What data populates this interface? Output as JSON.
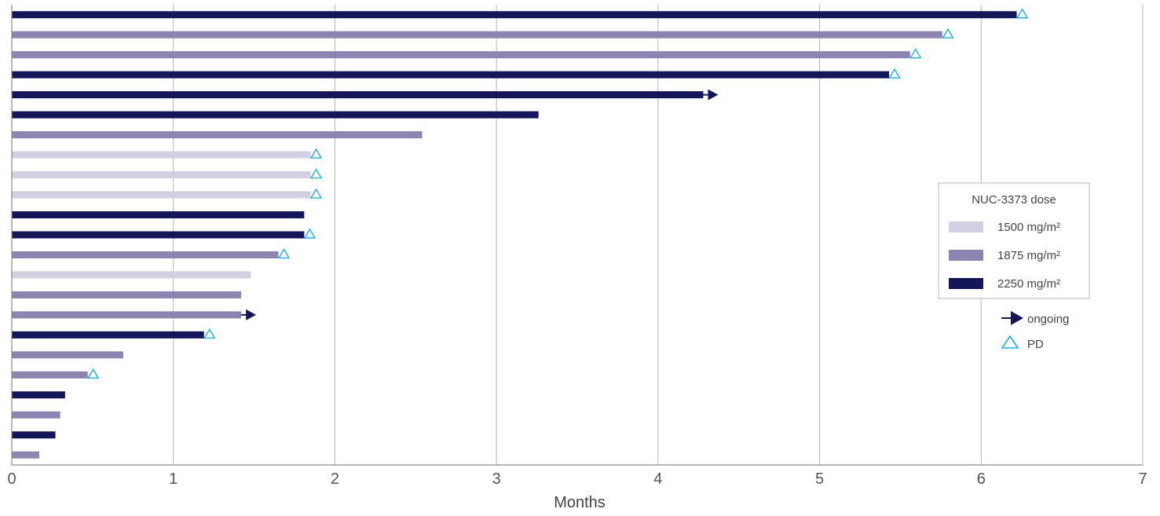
{
  "chart_data": {
    "type": "bar",
    "orientation": "horizontal",
    "xlabel": "Months",
    "xlim": [
      0,
      7
    ],
    "x_ticks": [
      "0",
      "1",
      "2",
      "3",
      "4",
      "5",
      "6",
      "7"
    ],
    "grid": true,
    "legend_placement": "right",
    "legend": {
      "title": "NUC-3373 dose",
      "series": [
        {
          "name": "1500 mg/m²",
          "color": "#d3cfe3"
        },
        {
          "name": "1875 mg/m²",
          "color": "#8c85b2"
        },
        {
          "name": "2250 mg/m²",
          "color": "#141659"
        }
      ],
      "markers": [
        {
          "name": "ongoing",
          "icon": "arrow-right-icon",
          "color": "#141659"
        },
        {
          "name": "PD",
          "icon": "triangle-icon",
          "color": "#1ab0e0"
        }
      ]
    },
    "bars": [
      {
        "dose": "2250 mg/m²",
        "months": 6.22,
        "marker": "PD"
      },
      {
        "dose": "1875 mg/m²",
        "months": 5.76,
        "marker": "PD"
      },
      {
        "dose": "1875 mg/m²",
        "months": 5.56,
        "marker": "PD"
      },
      {
        "dose": "2250 mg/m²",
        "months": 5.43,
        "marker": "PD"
      },
      {
        "dose": "2250 mg/m²",
        "months": 4.28,
        "marker": "ongoing"
      },
      {
        "dose": "2250 mg/m²",
        "months": 3.26,
        "marker": ""
      },
      {
        "dose": "1875 mg/m²",
        "months": 2.54,
        "marker": ""
      },
      {
        "dose": "1500 mg/m²",
        "months": 1.85,
        "marker": "PD"
      },
      {
        "dose": "1500 mg/m²",
        "months": 1.85,
        "marker": "PD"
      },
      {
        "dose": "1500 mg/m²",
        "months": 1.85,
        "marker": "PD"
      },
      {
        "dose": "2250 mg/m²",
        "months": 1.81,
        "marker": ""
      },
      {
        "dose": "2250 mg/m²",
        "months": 1.81,
        "marker": "PD"
      },
      {
        "dose": "1875 mg/m²",
        "months": 1.65,
        "marker": "PD"
      },
      {
        "dose": "1500 mg/m²",
        "months": 1.48,
        "marker": ""
      },
      {
        "dose": "1875 mg/m²",
        "months": 1.42,
        "marker": ""
      },
      {
        "dose": "1875 mg/m²",
        "months": 1.42,
        "marker": "ongoing"
      },
      {
        "dose": "2250 mg/m²",
        "months": 1.19,
        "marker": "PD"
      },
      {
        "dose": "1875 mg/m²",
        "months": 0.69,
        "marker": ""
      },
      {
        "dose": "1875 mg/m²",
        "months": 0.47,
        "marker": "PD"
      },
      {
        "dose": "2250 mg/m²",
        "months": 0.33,
        "marker": ""
      },
      {
        "dose": "1875 mg/m²",
        "months": 0.3,
        "marker": ""
      },
      {
        "dose": "2250 mg/m²",
        "months": 0.27,
        "marker": ""
      },
      {
        "dose": "1875 mg/m²",
        "months": 0.17,
        "marker": ""
      }
    ]
  }
}
